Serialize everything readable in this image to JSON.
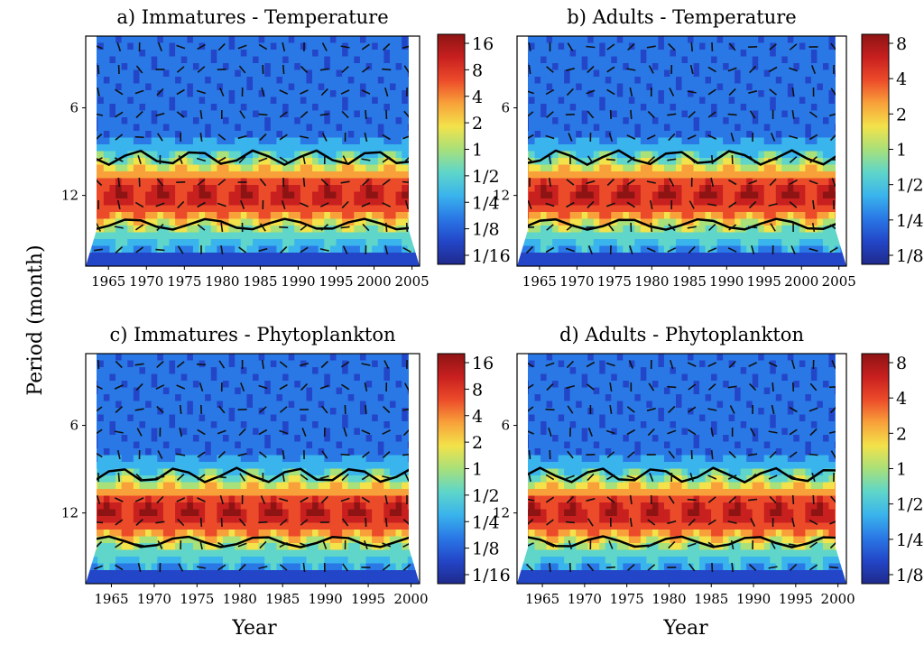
{
  "ylabel": "Period (month)",
  "xlabel": "Year",
  "colormap": [
    "#1f2a8c",
    "#2346c8",
    "#2a78e6",
    "#3ab4ec",
    "#5fd6c9",
    "#a8e07a",
    "#f3e24a",
    "#f8a13a",
    "#ec4b2a",
    "#c81f1f",
    "#8e1414"
  ],
  "chart_data": [
    {
      "type": "heatmap",
      "title": "a) Immatures - Temperature",
      "x_ticks": [
        1965,
        1970,
        1975,
        1980,
        1985,
        1990,
        1995,
        2000,
        2005
      ],
      "xlim": [
        1962,
        2006
      ],
      "y_scale": "log2",
      "y_ticks": [
        6,
        12
      ],
      "ylim": [
        3.4,
        21
      ],
      "band_period": 12,
      "colorbar_ticks": [
        "16",
        "8",
        "4",
        "2",
        "1",
        "1/2",
        "1/4",
        "1/8",
        "1/16"
      ]
    },
    {
      "type": "heatmap",
      "title": "b) Adults - Temperature",
      "x_ticks": [
        1965,
        1970,
        1975,
        1980,
        1985,
        1990,
        1995,
        2000,
        2005
      ],
      "xlim": [
        1962,
        2006
      ],
      "y_scale": "log2",
      "y_ticks": [
        6,
        12
      ],
      "ylim": [
        3.4,
        21
      ],
      "band_period": 12,
      "colorbar_ticks": [
        "8",
        "4",
        "2",
        "1",
        "1/2",
        "1/4",
        "1/8"
      ]
    },
    {
      "type": "heatmap",
      "title": "c) Immatures - Phytoplankton",
      "x_ticks": [
        1965,
        1970,
        1975,
        1980,
        1985,
        1990,
        1995,
        2000
      ],
      "xlim": [
        1962,
        2001
      ],
      "y_scale": "log2",
      "y_ticks": [
        6,
        12
      ],
      "ylim": [
        3.4,
        21
      ],
      "band_period": 12,
      "colorbar_ticks": [
        "16",
        "8",
        "4",
        "2",
        "1",
        "1/2",
        "1/4",
        "1/8",
        "1/16"
      ]
    },
    {
      "type": "heatmap",
      "title": "d) Adults - Phytoplankton",
      "x_ticks": [
        1965,
        1970,
        1975,
        1980,
        1985,
        1990,
        1995,
        2000
      ],
      "xlim": [
        1962,
        2001
      ],
      "y_scale": "log2",
      "y_ticks": [
        6,
        12
      ],
      "ylim": [
        3.4,
        21
      ],
      "band_period": 12,
      "colorbar_ticks": [
        "8",
        "4",
        "2",
        "1",
        "1/2",
        "1/4",
        "1/8"
      ]
    }
  ]
}
